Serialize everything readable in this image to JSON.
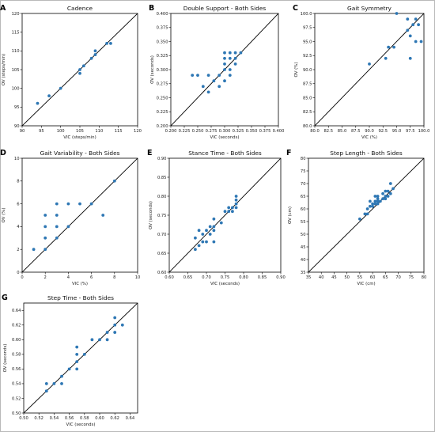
{
  "colors": {
    "point": "#2e77b4",
    "line": "#000000",
    "axes": "#000000"
  },
  "chart_data": [
    {
      "type": "scatter",
      "letter": "A",
      "title": "Cadence",
      "xlabel": "VIC (steps/min)",
      "ylabel": "OV (steps/min)",
      "xlim": [
        90,
        120
      ],
      "ylim": [
        90,
        120
      ],
      "xticks": [
        90,
        95,
        100,
        105,
        110,
        115,
        120
      ],
      "yticks": [
        90,
        95,
        100,
        105,
        110,
        115,
        120
      ],
      "tick_decimals": 0,
      "identity_line": true,
      "points": [
        [
          94,
          96
        ],
        [
          97,
          98
        ],
        [
          100,
          100
        ],
        [
          105,
          104
        ],
        [
          105,
          105
        ],
        [
          106,
          106
        ],
        [
          108,
          108
        ],
        [
          109,
          109
        ],
        [
          109,
          110
        ],
        [
          112,
          112
        ],
        [
          113,
          112
        ]
      ]
    },
    {
      "type": "scatter",
      "letter": "B",
      "title": "Double Support - Both Sides",
      "xlabel": "VIC (seconds)",
      "ylabel": "OV (seconds)",
      "xlim": [
        0.2,
        0.4
      ],
      "ylim": [
        0.2,
        0.4
      ],
      "xticks": [
        0.2,
        0.225,
        0.25,
        0.275,
        0.3,
        0.325,
        0.35,
        0.375,
        0.4
      ],
      "yticks": [
        0.2,
        0.225,
        0.25,
        0.275,
        0.3,
        0.325,
        0.35,
        0.375,
        0.4
      ],
      "tick_decimals": 3,
      "identity_line": true,
      "points": [
        [
          0.24,
          0.29
        ],
        [
          0.25,
          0.29
        ],
        [
          0.26,
          0.27
        ],
        [
          0.27,
          0.26
        ],
        [
          0.27,
          0.29
        ],
        [
          0.28,
          0.28
        ],
        [
          0.29,
          0.27
        ],
        [
          0.29,
          0.29
        ],
        [
          0.3,
          0.28
        ],
        [
          0.3,
          0.3
        ],
        [
          0.3,
          0.31
        ],
        [
          0.3,
          0.32
        ],
        [
          0.3,
          0.33
        ],
        [
          0.31,
          0.29
        ],
        [
          0.31,
          0.3
        ],
        [
          0.31,
          0.32
        ],
        [
          0.31,
          0.33
        ],
        [
          0.32,
          0.31
        ],
        [
          0.32,
          0.32
        ],
        [
          0.32,
          0.33
        ],
        [
          0.33,
          0.33
        ]
      ]
    },
    {
      "type": "scatter",
      "letter": "C",
      "title": "Gait Symmetry",
      "xlabel": "VIC (%)",
      "ylabel": "OV (%)",
      "xlim": [
        80,
        100
      ],
      "ylim": [
        80,
        100
      ],
      "xticks": [
        80,
        82.5,
        85,
        87.5,
        90,
        92.5,
        95,
        97.5,
        100
      ],
      "yticks": [
        80,
        82.5,
        85,
        87.5,
        90,
        92.5,
        95,
        97.5,
        100
      ],
      "tick_decimals": 1,
      "identity_line": true,
      "points": [
        [
          90,
          91
        ],
        [
          93,
          92
        ],
        [
          93.5,
          94
        ],
        [
          94.5,
          94
        ],
        [
          95,
          100
        ],
        [
          97,
          97
        ],
        [
          97,
          99
        ],
        [
          97.5,
          92
        ],
        [
          97.5,
          96
        ],
        [
          98,
          98
        ],
        [
          98.5,
          99
        ],
        [
          98.5,
          95
        ],
        [
          99,
          98
        ],
        [
          99.5,
          95
        ]
      ]
    },
    {
      "type": "scatter",
      "letter": "D",
      "title": "Gait Variability - Both Sides",
      "xlabel": "VIC (%)",
      "ylabel": "OV (%)",
      "xlim": [
        0,
        10
      ],
      "ylim": [
        0,
        10
      ],
      "xticks": [
        0,
        2,
        4,
        6,
        8,
        10
      ],
      "yticks": [
        0,
        2,
        4,
        6,
        8,
        10
      ],
      "tick_decimals": 0,
      "identity_line": true,
      "points": [
        [
          1,
          2
        ],
        [
          2,
          2
        ],
        [
          2,
          3
        ],
        [
          2,
          4
        ],
        [
          2,
          5
        ],
        [
          3,
          3
        ],
        [
          3,
          4
        ],
        [
          3,
          5
        ],
        [
          3,
          6
        ],
        [
          4,
          4
        ],
        [
          4,
          6
        ],
        [
          5,
          6
        ],
        [
          6,
          6
        ],
        [
          7,
          5
        ],
        [
          8,
          8
        ]
      ]
    },
    {
      "type": "scatter",
      "letter": "E",
      "title": "Stance Time - Both Sides",
      "xlabel": "VIC (seconds)",
      "ylabel": "OV (seconds)",
      "xlim": [
        0.6,
        0.9
      ],
      "ylim": [
        0.6,
        0.9
      ],
      "xticks": [
        0.6,
        0.65,
        0.7,
        0.75,
        0.8,
        0.85,
        0.9
      ],
      "yticks": [
        0.6,
        0.65,
        0.7,
        0.75,
        0.8,
        0.85,
        0.9
      ],
      "tick_decimals": 2,
      "identity_line": true,
      "points": [
        [
          0.67,
          0.66
        ],
        [
          0.67,
          0.69
        ],
        [
          0.68,
          0.67
        ],
        [
          0.68,
          0.71
        ],
        [
          0.69,
          0.68
        ],
        [
          0.69,
          0.7
        ],
        [
          0.7,
          0.68
        ],
        [
          0.7,
          0.71
        ],
        [
          0.71,
          0.7
        ],
        [
          0.71,
          0.72
        ],
        [
          0.72,
          0.68
        ],
        [
          0.72,
          0.71
        ],
        [
          0.72,
          0.72
        ],
        [
          0.72,
          0.74
        ],
        [
          0.74,
          0.73
        ],
        [
          0.75,
          0.76
        ],
        [
          0.76,
          0.76
        ],
        [
          0.76,
          0.77
        ],
        [
          0.77,
          0.76
        ],
        [
          0.77,
          0.77
        ],
        [
          0.78,
          0.77
        ],
        [
          0.78,
          0.78
        ],
        [
          0.78,
          0.79
        ],
        [
          0.78,
          0.8
        ]
      ]
    },
    {
      "type": "scatter",
      "letter": "F",
      "title": "Step Length - Both Sides",
      "xlabel": "VIC (cm)",
      "ylabel": "OV (cm)",
      "xlim": [
        35,
        80
      ],
      "ylim": [
        35,
        80
      ],
      "xticks": [
        35,
        40,
        45,
        50,
        55,
        60,
        65,
        70,
        75,
        80
      ],
      "yticks": [
        35,
        40,
        45,
        50,
        55,
        60,
        65,
        70,
        75,
        80
      ],
      "tick_decimals": 0,
      "identity_line": true,
      "points": [
        [
          55,
          56
        ],
        [
          57,
          58
        ],
        [
          58,
          58
        ],
        [
          58,
          60
        ],
        [
          59,
          61
        ],
        [
          59,
          63
        ],
        [
          60,
          61
        ],
        [
          60,
          62
        ],
        [
          61,
          62
        ],
        [
          61,
          63
        ],
        [
          61,
          65
        ],
        [
          62,
          62
        ],
        [
          62,
          63
        ],
        [
          62,
          64
        ],
        [
          62,
          65
        ],
        [
          63,
          63
        ],
        [
          64,
          64
        ],
        [
          64,
          66
        ],
        [
          65,
          64
        ],
        [
          65,
          65
        ],
        [
          65,
          67
        ],
        [
          66,
          65
        ],
        [
          66,
          67
        ],
        [
          67,
          66
        ],
        [
          67,
          70
        ],
        [
          68,
          68
        ]
      ]
    },
    {
      "type": "scatter",
      "letter": "G",
      "title": "Step Time - Both Sides",
      "xlabel": "VIC (seconds)",
      "ylabel": "OV (seconds)",
      "xlim": [
        0.5,
        0.65
      ],
      "ylim": [
        0.5,
        0.65
      ],
      "xticks": [
        0.5,
        0.52,
        0.54,
        0.56,
        0.58,
        0.6,
        0.62,
        0.64
      ],
      "yticks": [
        0.5,
        0.52,
        0.54,
        0.56,
        0.58,
        0.6,
        0.62,
        0.64
      ],
      "tick_decimals": 2,
      "identity_line": true,
      "points": [
        [
          0.53,
          0.53
        ],
        [
          0.53,
          0.54
        ],
        [
          0.54,
          0.54
        ],
        [
          0.55,
          0.54
        ],
        [
          0.55,
          0.55
        ],
        [
          0.56,
          0.56
        ],
        [
          0.57,
          0.56
        ],
        [
          0.57,
          0.57
        ],
        [
          0.57,
          0.58
        ],
        [
          0.57,
          0.59
        ],
        [
          0.58,
          0.58
        ],
        [
          0.59,
          0.6
        ],
        [
          0.6,
          0.6
        ],
        [
          0.61,
          0.6
        ],
        [
          0.61,
          0.61
        ],
        [
          0.62,
          0.61
        ],
        [
          0.62,
          0.62
        ],
        [
          0.62,
          0.63
        ],
        [
          0.63,
          0.62
        ]
      ]
    }
  ]
}
